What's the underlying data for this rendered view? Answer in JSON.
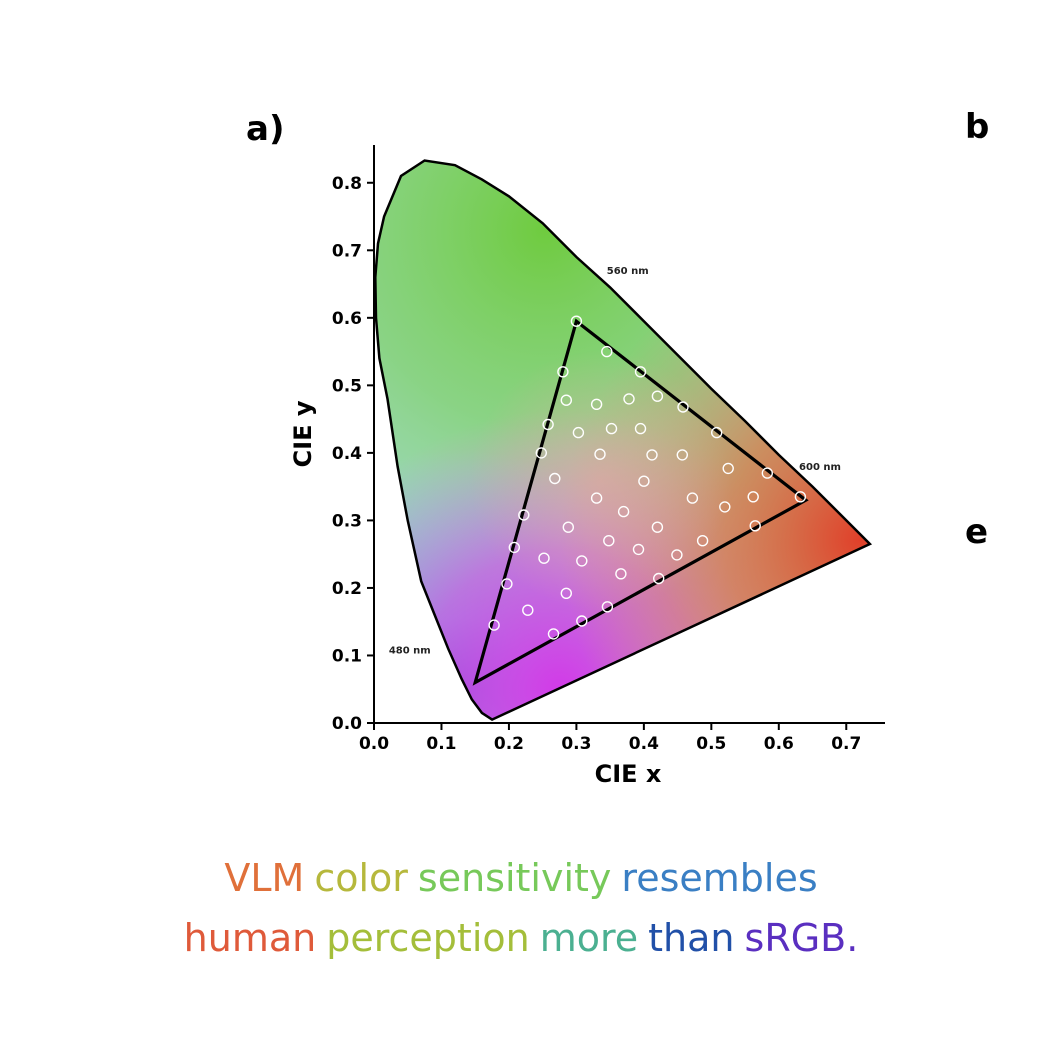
{
  "figure": {
    "panel_labels": [
      "a)",
      "b",
      "e"
    ]
  },
  "chart_data": {
    "type": "scatter",
    "title": "",
    "xlabel": "CIE x",
    "ylabel": "CIE y",
    "xlim": [
      0.0,
      0.75
    ],
    "ylim": [
      0.0,
      0.85
    ],
    "xticks": [
      "0.0",
      "0.1",
      "0.2",
      "0.3",
      "0.4",
      "0.5",
      "0.6",
      "0.7"
    ],
    "yticks": [
      "0.0",
      "0.1",
      "0.2",
      "0.3",
      "0.4",
      "0.5",
      "0.6",
      "0.7",
      "0.8"
    ],
    "grid": false,
    "wavelength_labels": [
      {
        "text": "560 nm",
        "x": 0.345,
        "y": 0.665
      },
      {
        "text": "600 nm",
        "x": 0.63,
        "y": 0.375
      },
      {
        "text": "480 nm",
        "x": 0.022,
        "y": 0.103
      }
    ],
    "spectral_locus": [
      [
        0.175,
        0.005
      ],
      [
        0.16,
        0.015
      ],
      [
        0.145,
        0.035
      ],
      [
        0.13,
        0.065
      ],
      [
        0.11,
        0.11
      ],
      [
        0.09,
        0.16
      ],
      [
        0.07,
        0.21
      ],
      [
        0.05,
        0.3
      ],
      [
        0.035,
        0.38
      ],
      [
        0.02,
        0.48
      ],
      [
        0.008,
        0.54
      ],
      [
        0.003,
        0.6
      ],
      [
        0.002,
        0.66
      ],
      [
        0.006,
        0.71
      ],
      [
        0.015,
        0.75
      ],
      [
        0.04,
        0.81
      ],
      [
        0.075,
        0.833
      ],
      [
        0.12,
        0.826
      ],
      [
        0.16,
        0.805
      ],
      [
        0.2,
        0.78
      ],
      [
        0.25,
        0.74
      ],
      [
        0.3,
        0.69
      ],
      [
        0.35,
        0.645
      ],
      [
        0.4,
        0.595
      ],
      [
        0.45,
        0.545
      ],
      [
        0.5,
        0.495
      ],
      [
        0.55,
        0.447
      ],
      [
        0.6,
        0.397
      ],
      [
        0.65,
        0.35
      ],
      [
        0.7,
        0.3
      ],
      [
        0.735,
        0.265
      ]
    ],
    "gamut_triangle": [
      [
        0.3,
        0.595
      ],
      [
        0.64,
        0.33
      ],
      [
        0.15,
        0.06
      ]
    ],
    "series": [
      {
        "points": [
          [
            0.3,
            0.595
          ],
          [
            0.345,
            0.55
          ],
          [
            0.28,
            0.52
          ],
          [
            0.395,
            0.52
          ],
          [
            0.285,
            0.478
          ],
          [
            0.33,
            0.472
          ],
          [
            0.378,
            0.48
          ],
          [
            0.42,
            0.484
          ],
          [
            0.458,
            0.468
          ],
          [
            0.258,
            0.442
          ],
          [
            0.303,
            0.43
          ],
          [
            0.352,
            0.436
          ],
          [
            0.395,
            0.436
          ],
          [
            0.508,
            0.43
          ],
          [
            0.248,
            0.4
          ],
          [
            0.335,
            0.398
          ],
          [
            0.412,
            0.397
          ],
          [
            0.457,
            0.397
          ],
          [
            0.525,
            0.377
          ],
          [
            0.583,
            0.37
          ],
          [
            0.268,
            0.362
          ],
          [
            0.4,
            0.358
          ],
          [
            0.33,
            0.333
          ],
          [
            0.472,
            0.333
          ],
          [
            0.562,
            0.335
          ],
          [
            0.632,
            0.335
          ],
          [
            0.222,
            0.308
          ],
          [
            0.37,
            0.313
          ],
          [
            0.52,
            0.32
          ],
          [
            0.288,
            0.29
          ],
          [
            0.42,
            0.29
          ],
          [
            0.565,
            0.292
          ],
          [
            0.208,
            0.26
          ],
          [
            0.348,
            0.27
          ],
          [
            0.487,
            0.27
          ],
          [
            0.252,
            0.244
          ],
          [
            0.308,
            0.24
          ],
          [
            0.392,
            0.257
          ],
          [
            0.449,
            0.249
          ],
          [
            0.197,
            0.206
          ],
          [
            0.366,
            0.221
          ],
          [
            0.422,
            0.214
          ],
          [
            0.285,
            0.192
          ],
          [
            0.228,
            0.167
          ],
          [
            0.346,
            0.172
          ],
          [
            0.178,
            0.145
          ],
          [
            0.308,
            0.151
          ],
          [
            0.266,
            0.132
          ]
        ]
      }
    ]
  },
  "caption": {
    "line1": [
      {
        "text": "VLM",
        "color": "#e0703a"
      },
      {
        "text": "color",
        "color": "#b6b83c"
      },
      {
        "text": "sensitivity",
        "color": "#77c95a"
      },
      {
        "text": "resembles",
        "color": "#3a7fc4"
      }
    ],
    "line2": [
      {
        "text": "human",
        "color": "#df5a3a"
      },
      {
        "text": "perception",
        "color": "#a4be3a"
      },
      {
        "text": "more",
        "color": "#4bb091"
      },
      {
        "text": "than",
        "color": "#2150a8"
      },
      {
        "text": "sRGB.",
        "color": "#5a2fc0"
      }
    ]
  }
}
